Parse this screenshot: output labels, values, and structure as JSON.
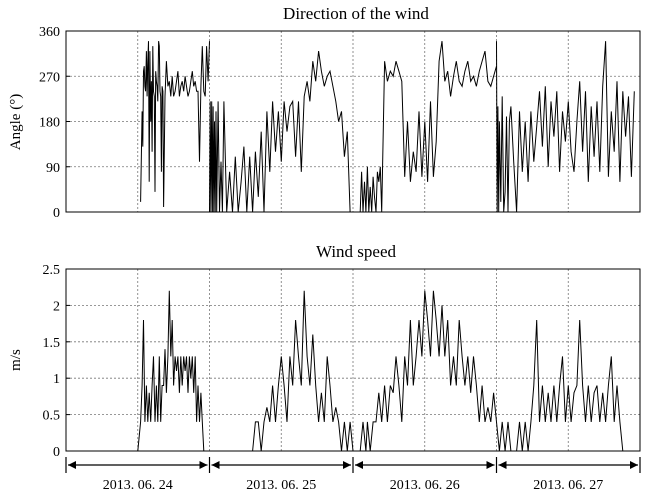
{
  "chart_data": [
    {
      "type": "line",
      "title": "Direction of the wind",
      "xlabel": "",
      "ylabel": "Angle (°)",
      "ylim": [
        0,
        360
      ],
      "yticks": [
        0,
        90,
        180,
        270,
        360
      ],
      "ytick_labels": [
        "0",
        "90",
        "180",
        "270",
        "360"
      ],
      "xlim": [
        0,
        4
      ],
      "grid": true,
      "series": [
        {
          "name": "Wind direction",
          "segments": [
            {
              "x": [
                0.52,
                0.53,
                0.535,
                0.54,
                0.545,
                0.55,
                0.555,
                0.56,
                0.565,
                0.57,
                0.575,
                0.58,
                0.585,
                0.59,
                0.595,
                0.6,
                0.605,
                0.61,
                0.615,
                0.62,
                0.625,
                0.63,
                0.635,
                0.64,
                0.645,
                0.65,
                0.655,
                0.66,
                0.665,
                0.67,
                0.675,
                0.68,
                0.69,
                0.7,
                0.71,
                0.72,
                0.73,
                0.74,
                0.75,
                0.76,
                0.77,
                0.78,
                0.79,
                0.8,
                0.81,
                0.82,
                0.83,
                0.84,
                0.85,
                0.86,
                0.87,
                0.88,
                0.89,
                0.9,
                0.91,
                0.92,
                0.93,
                0.94,
                0.95,
                0.96,
                0.97,
                0.98,
                0.99,
                1.0
              ],
              "y": [
                20,
                200,
                130,
                280,
                290,
                250,
                240,
                320,
                230,
                300,
                340,
                60,
                320,
                180,
                260,
                120,
                330,
                240,
                230,
                40,
                280,
                260,
                250,
                220,
                340,
                330,
                240,
                230,
                80,
                250,
                240,
                10,
                230,
                300,
                250,
                260,
                230,
                270,
                230,
                240,
                260,
                280,
                230,
                250,
                260,
                240,
                270,
                250,
                230,
                240,
                260,
                280,
                250,
                260,
                240,
                240,
                100,
                250,
                330,
                240,
                230,
                330,
                260,
                340
              ]
            },
            {
              "x": [
                1.0,
                1.005,
                1.01,
                1.015,
                1.02,
                1.025,
                1.03,
                1.035,
                1.04,
                1.045,
                1.05,
                1.06,
                1.07,
                1.08,
                1.09,
                1.1,
                1.12,
                1.14,
                1.16,
                1.18,
                1.2,
                1.22,
                1.24,
                1.26,
                1.28,
                1.3,
                1.32,
                1.34,
                1.36,
                1.38,
                1.4,
                1.42,
                1.44,
                1.46,
                1.48,
                1.5,
                1.52,
                1.54,
                1.56,
                1.58,
                1.6,
                1.62,
                1.64,
                1.66,
                1.68,
                1.7,
                1.72,
                1.74,
                1.76,
                1.78,
                1.8,
                1.82,
                1.84,
                1.86,
                1.88,
                1.9,
                1.92,
                1.94,
                1.96,
                1.98,
                2.0
              ],
              "y": [
                0,
                220,
                0,
                220,
                0,
                210,
                0,
                180,
                0,
                200,
                0,
                220,
                0,
                100,
                0,
                220,
                0,
                80,
                0,
                110,
                0,
                60,
                130,
                0,
                110,
                0,
                120,
                30,
                160,
                0,
                200,
                80,
                220,
                120,
                200,
                100,
                220,
                160,
                210,
                220,
                110,
                220,
                80,
                230,
                260,
                220,
                300,
                260,
                320,
                280,
                250,
                270,
                280,
                250,
                220,
                180,
                200,
                110,
                160,
                0,
                0
              ]
            },
            {
              "x": [
                2.05,
                2.06,
                2.07,
                2.08,
                2.09,
                2.1,
                2.11,
                2.12,
                2.13,
                2.14,
                2.15,
                2.16,
                2.17,
                2.18,
                2.19,
                2.2,
                2.22,
                2.24,
                2.26,
                2.28,
                2.3,
                2.32,
                2.34,
                2.36,
                2.38,
                2.4,
                2.42,
                2.44,
                2.46,
                2.48,
                2.5,
                2.52,
                2.54,
                2.56,
                2.58,
                2.6,
                2.62,
                2.64,
                2.66,
                2.68,
                2.7,
                2.72,
                2.74,
                2.76,
                2.78,
                2.8,
                2.82,
                2.84,
                2.86,
                2.88,
                2.9,
                2.92,
                2.94,
                2.96,
                2.98,
                3.0
              ],
              "y": [
                0,
                80,
                0,
                60,
                0,
                90,
                0,
                50,
                0,
                70,
                30,
                0,
                80,
                60,
                90,
                0,
                300,
                260,
                280,
                270,
                300,
                280,
                260,
                70,
                180,
                60,
                120,
                80,
                200,
                70,
                180,
                60,
                220,
                70,
                140,
                300,
                340,
                260,
                280,
                230,
                270,
                300,
                260,
                250,
                280,
                300,
                260,
                270,
                250,
                280,
                300,
                320,
                260,
                250,
                270,
                290
              ]
            },
            {
              "x": [
                3.0,
                3.005,
                3.01,
                3.015,
                3.02,
                3.03,
                3.04,
                3.05,
                3.06,
                3.07,
                3.08,
                3.09,
                3.1,
                3.12,
                3.14,
                3.16,
                3.18,
                3.2,
                3.22,
                3.24,
                3.26,
                3.28,
                3.3,
                3.32,
                3.34,
                3.36,
                3.38,
                3.4,
                3.42,
                3.44,
                3.46,
                3.48,
                3.5,
                3.52,
                3.54,
                3.56,
                3.58,
                3.6,
                3.62,
                3.64,
                3.66,
                3.68,
                3.7,
                3.72,
                3.74,
                3.76,
                3.78,
                3.8,
                3.82,
                3.84,
                3.86,
                3.88,
                3.9,
                3.92,
                3.94,
                3.96
              ],
              "y": [
                340,
                0,
                210,
                0,
                180,
                20,
                230,
                0,
                40,
                190,
                0,
                180,
                210,
                100,
                0,
                200,
                80,
                180,
                60,
                200,
                100,
                170,
                240,
                130,
                250,
                90,
                220,
                150,
                240,
                80,
                200,
                140,
                220,
                120,
                80,
                180,
                260,
                120,
                240,
                60,
                210,
                110,
                220,
                80,
                250,
                340,
                70,
                200,
                120,
                260,
                60,
                240,
                150,
                230,
                70,
                240
              ]
            }
          ]
        }
      ]
    },
    {
      "type": "line",
      "title": "Wind speed",
      "xlabel": "",
      "ylabel": "m/s",
      "ylim": [
        0,
        2.5
      ],
      "yticks": [
        0,
        0.5,
        1,
        1.5,
        2,
        2.5
      ],
      "ytick_labels": [
        "0",
        "0.5",
        "1",
        "1.5",
        "2",
        "2.5"
      ],
      "xlim": [
        0,
        4
      ],
      "grid": true,
      "series": [
        {
          "name": "Wind speed",
          "segments": [
            {
              "x": [
                0.46,
                0.5,
                0.52,
                0.53,
                0.54,
                0.55,
                0.56,
                0.57,
                0.58,
                0.59,
                0.6,
                0.61,
                0.62,
                0.63,
                0.64,
                0.65,
                0.66,
                0.67,
                0.68,
                0.69,
                0.7,
                0.71,
                0.72,
                0.73,
                0.74,
                0.75,
                0.76,
                0.77,
                0.78,
                0.79,
                0.8,
                0.81,
                0.82,
                0.83,
                0.84,
                0.85,
                0.86,
                0.87,
                0.88,
                0.89,
                0.9,
                0.91,
                0.92,
                0.93,
                0.94,
                0.95,
                0.96,
                0.97,
                0.98,
                0.99,
                1.0
              ],
              "y": [
                0,
                0,
                0.4,
                0.9,
                1.8,
                0.4,
                0.9,
                0.4,
                0.8,
                0.4,
                0.9,
                1.3,
                0.4,
                0.9,
                0.4,
                1.3,
                0.4,
                0.9,
                0.9,
                1.4,
                0.8,
                1.3,
                2.2,
                1.3,
                1.8,
                0.9,
                1.3,
                1.1,
                1.3,
                0.8,
                1.3,
                0.9,
                1.3,
                1.1,
                1.3,
                0.8,
                1.3,
                1.0,
                1.3,
                0.8,
                1.3,
                0.4,
                0.9,
                0.4,
                0.8,
                0.4,
                0.0,
                0.0,
                0.0,
                0.0,
                0.0
              ]
            },
            {
              "x": [
                1.3,
                1.32,
                1.34,
                1.36,
                1.38,
                1.4,
                1.42,
                1.44,
                1.46,
                1.48,
                1.5,
                1.52,
                1.54,
                1.56,
                1.58,
                1.6,
                1.62,
                1.64,
                1.66,
                1.68,
                1.7,
                1.72,
                1.74,
                1.76,
                1.78,
                1.8,
                1.82,
                1.84,
                1.86,
                1.88,
                1.9,
                1.92,
                1.94,
                1.96,
                1.98,
                2.0
              ],
              "y": [
                0,
                0.4,
                0.4,
                0,
                0.4,
                0.6,
                0.4,
                0.9,
                0.4,
                0.9,
                1.3,
                0.9,
                0.4,
                1.3,
                0.9,
                1.8,
                1.3,
                0.9,
                2.2,
                1.3,
                0.9,
                1.6,
                0.9,
                0.4,
                0.8,
                0.4,
                1.3,
                0.9,
                0.4,
                0.6,
                0.4,
                0,
                0.4,
                0,
                0.4,
                0
              ]
            },
            {
              "x": [
                2.05,
                2.07,
                2.09,
                2.1,
                2.12,
                2.14,
                2.16,
                2.18,
                2.2,
                2.22,
                2.24,
                2.26,
                2.28,
                2.3,
                2.32,
                2.34,
                2.36,
                2.38,
                2.4,
                2.42,
                2.44,
                2.46,
                2.48,
                2.5,
                2.52,
                2.54,
                2.56,
                2.58,
                2.6,
                2.62,
                2.64,
                2.66,
                2.68,
                2.7,
                2.72,
                2.74,
                2.76,
                2.78,
                2.8,
                2.82,
                2.84,
                2.86,
                2.88,
                2.9,
                2.92,
                2.94,
                2.96,
                2.98,
                3.0
              ],
              "y": [
                0,
                0.4,
                0,
                0.4,
                0,
                0.4,
                0.4,
                0.8,
                0.4,
                0.9,
                0.4,
                0.9,
                0.8,
                1.3,
                0.9,
                0.4,
                1.3,
                0.9,
                1.8,
                0.9,
                1.3,
                1.8,
                1.3,
                2.2,
                1.8,
                1.3,
                2.2,
                1.8,
                1.3,
                2.0,
                1.3,
                1.8,
                0.9,
                1.3,
                0.9,
                1.8,
                1.3,
                0.9,
                1.3,
                0.8,
                1.3,
                0.9,
                0.4,
                0.9,
                0.4,
                0.6,
                0.4,
                0.8,
                0.4
              ]
            },
            {
              "x": [
                3.0,
                3.02,
                3.04,
                3.06,
                3.08,
                3.1,
                3.12,
                3.14,
                3.16,
                3.18,
                3.2,
                3.22,
                3.24,
                3.26,
                3.28,
                3.3,
                3.32,
                3.34,
                3.36,
                3.38,
                3.4,
                3.42,
                3.44,
                3.46,
                3.48,
                3.5,
                3.52,
                3.54,
                3.56,
                3.58,
                3.6,
                3.62,
                3.64,
                3.66,
                3.68,
                3.7,
                3.72,
                3.74,
                3.76,
                3.78,
                3.8,
                3.82,
                3.84,
                3.86,
                3.88,
                3.9,
                3.92,
                3.94
              ],
              "y": [
                0.4,
                0,
                0.4,
                0,
                0.4,
                0,
                0,
                0,
                0.4,
                0,
                0.4,
                0,
                0.4,
                0.9,
                1.8,
                0.4,
                0.9,
                0.4,
                0.8,
                0.4,
                0.9,
                0.4,
                0.9,
                1.3,
                0.4,
                0.9,
                0.4,
                0.8,
                0.9,
                1.8,
                0.9,
                0.4,
                0.9,
                0.4,
                0.8,
                0.9,
                0.4,
                0.8,
                0.4,
                0.9,
                1.3,
                0.4,
                0.9,
                0.4,
                0.0,
                0.0,
                0.0,
                0.0
              ]
            }
          ]
        }
      ]
    }
  ],
  "date_axis": {
    "labels": [
      "2013. 06. 24",
      "2013. 06. 25",
      "2013. 06. 26",
      "2013. 06. 27"
    ]
  }
}
